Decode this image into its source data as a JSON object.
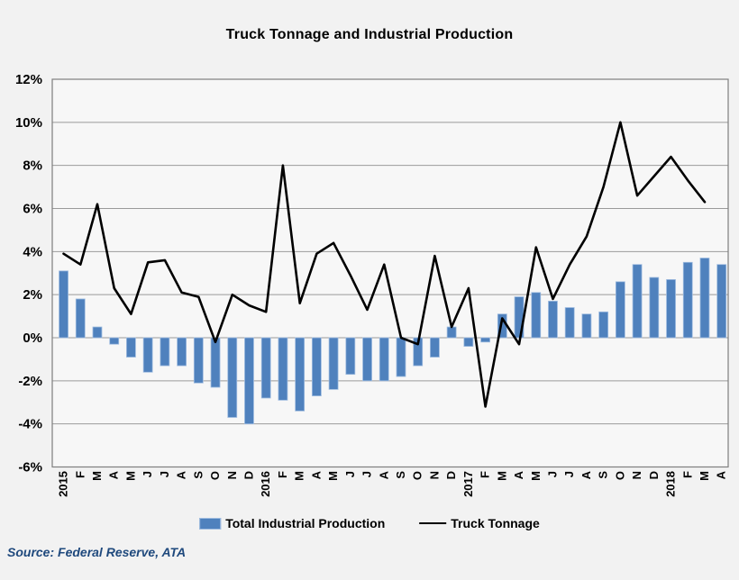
{
  "title": "Truck Tonnage and Industrial Production",
  "source": "Source: Federal Reserve, ATA",
  "legend": {
    "bar_label": "Total Industrial Production",
    "line_label": "Truck Tonnage"
  },
  "colors": {
    "bar_fill": "#4f81bd",
    "bar_edge": "#9fbce0",
    "line": "#000000",
    "grid": "#9a9a9a",
    "plot_border": "#7f7f7f",
    "page_background": "#f2f2f2",
    "plot_background": "#f7f7f7",
    "axis_text": "#000000",
    "source_text": "#1f497d"
  },
  "chart_data": {
    "type": "combo (bar + line)",
    "title": "Truck Tonnage and Industrial Production",
    "xlabel": "",
    "ylabel": "",
    "ylim": [
      -6,
      12
    ],
    "y_tick_interval": 2,
    "grid": true,
    "legend_position": "bottom",
    "y_tick_labels": [
      "12%",
      "10%",
      "8%",
      "6%",
      "4%",
      "2%",
      "0%",
      "-2%",
      "-4%",
      "-6%"
    ],
    "x_tick_labels": [
      "2015",
      "F",
      "M",
      "A",
      "M",
      "J",
      "J",
      "A",
      "S",
      "O",
      "N",
      "D",
      "2016",
      "F",
      "M",
      "A",
      "M",
      "J",
      "J",
      "A",
      "S",
      "O",
      "N",
      "D",
      "2017",
      "F",
      "M",
      "A",
      "M",
      "J",
      "J",
      "A",
      "S",
      "O",
      "N",
      "D",
      "2018",
      "F",
      "M",
      "A"
    ],
    "series": [
      {
        "name": "Total Industrial Production",
        "type": "bar",
        "unit": "%",
        "values": [
          3.1,
          1.8,
          0.5,
          -0.3,
          -0.9,
          -1.6,
          -1.3,
          -1.3,
          -2.1,
          -2.3,
          -3.7,
          -4.0,
          -2.8,
          -2.9,
          -3.4,
          -2.7,
          -2.4,
          -1.7,
          -2.0,
          -2.0,
          -1.8,
          -1.3,
          -0.9,
          0.5,
          -0.4,
          -0.2,
          1.1,
          1.9,
          2.1,
          1.7,
          1.4,
          1.1,
          1.2,
          2.6,
          3.4,
          2.8,
          2.7,
          3.5,
          3.7,
          3.4
        ]
      },
      {
        "name": "Truck Tonnage",
        "type": "line",
        "unit": "%",
        "values": [
          3.9,
          3.4,
          6.2,
          2.3,
          1.1,
          3.5,
          3.6,
          2.1,
          1.9,
          -0.2,
          2.0,
          1.5,
          1.2,
          8.0,
          1.6,
          3.9,
          4.4,
          2.9,
          1.3,
          3.4,
          0.0,
          -0.3,
          3.8,
          0.5,
          2.3,
          -3.2,
          0.9,
          -0.3,
          4.2,
          1.8,
          3.4,
          4.7,
          7.0,
          10.0,
          6.6,
          7.5,
          8.4,
          7.3,
          6.3,
          null
        ]
      }
    ]
  }
}
